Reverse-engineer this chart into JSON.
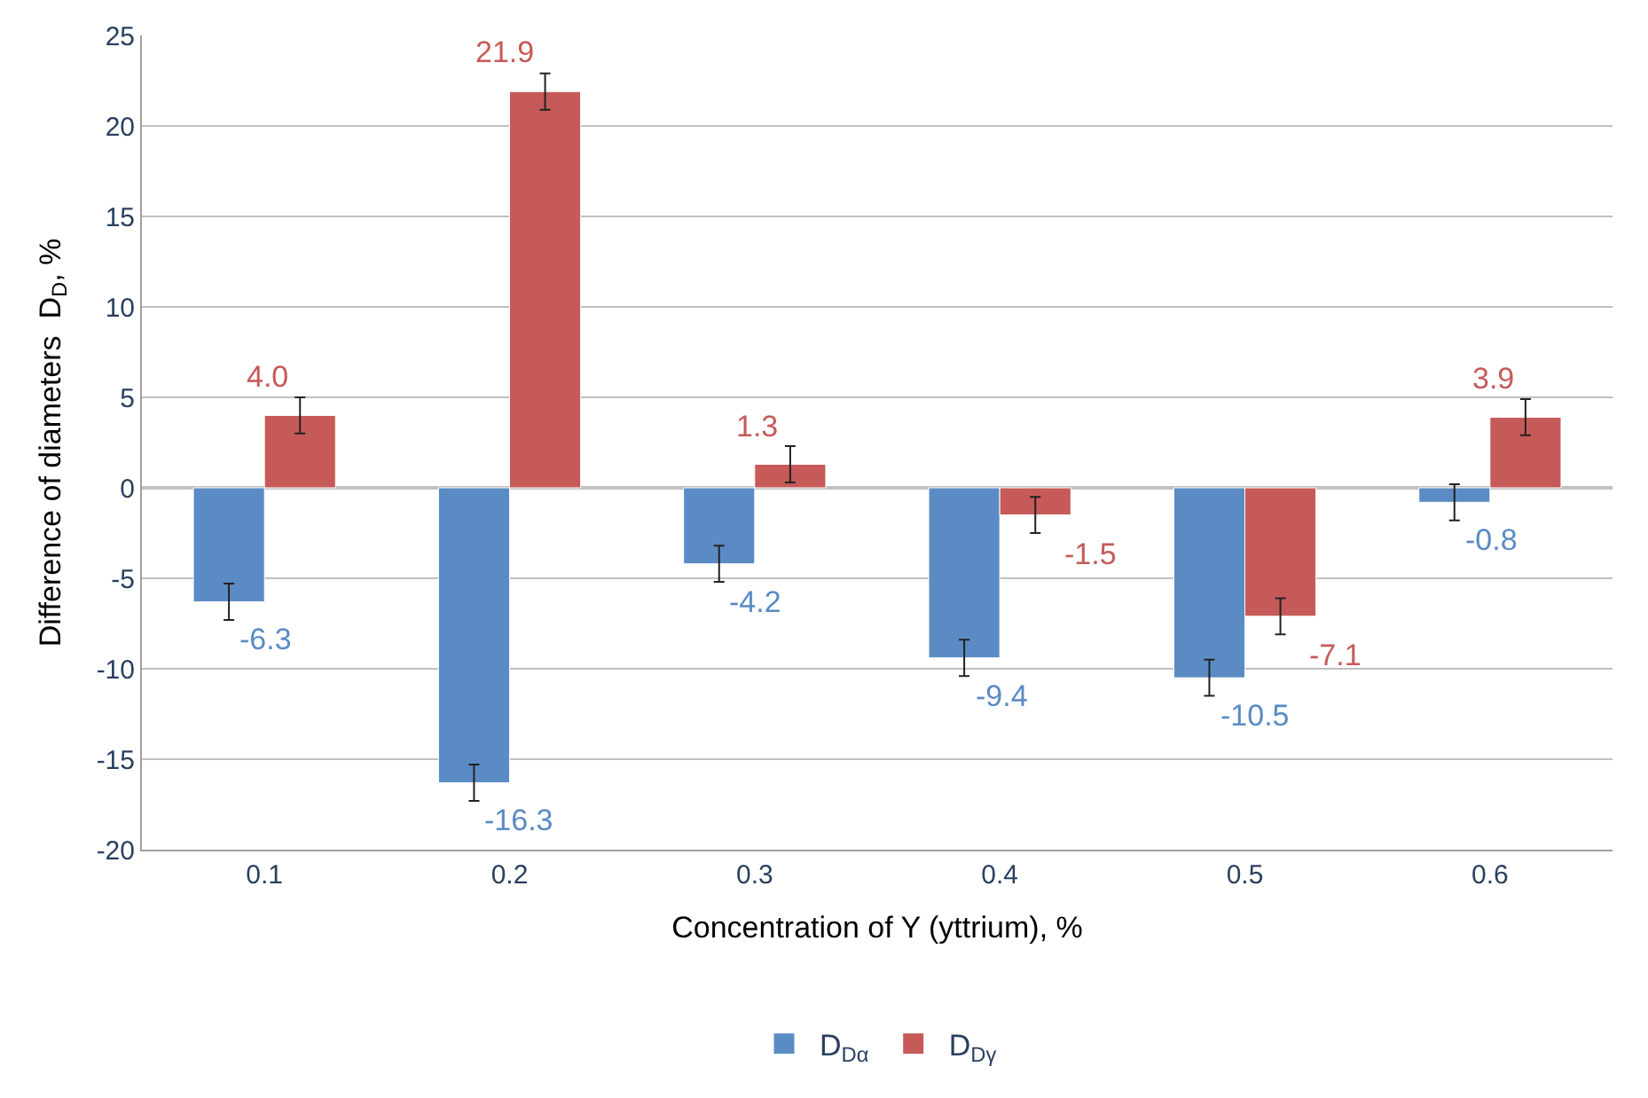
{
  "chart_data": {
    "type": "bar",
    "xlabel": "Concentration of Y (yttrium), %",
    "ylabel": "Difference of diameters  D$_{D}$, %",
    "categories": [
      "0.1",
      "0.2",
      "0.3",
      "0.4",
      "0.5",
      "0.6"
    ],
    "series": [
      {
        "name": "D$_{Dα}$",
        "color": "#5b8bc4",
        "values": [
          -6.3,
          -16.3,
          -4.2,
          -9.4,
          -10.5,
          -0.8
        ],
        "value_labels": [
          "-6.3",
          "-16.3",
          "-4.2",
          "-9.4",
          "-10.5",
          "-0.8"
        ],
        "errors": [
          1,
          1,
          1,
          1,
          1,
          1
        ]
      },
      {
        "name": "D$_{Dγ}$",
        "color": "#c65a58",
        "values": [
          4.0,
          21.9,
          1.3,
          -1.5,
          -7.1,
          3.9
        ],
        "value_labels": [
          "4.0",
          "21.9",
          "1.3",
          "-1.5",
          "-7.1",
          "3.9"
        ],
        "errors": [
          1,
          1,
          1,
          1,
          1,
          1
        ]
      }
    ],
    "ylim": [
      -20,
      25
    ],
    "yticks": [
      -20,
      -15,
      -10,
      -5,
      0,
      5,
      10,
      15,
      20,
      25
    ],
    "grid": "y",
    "legend": "bottom"
  }
}
